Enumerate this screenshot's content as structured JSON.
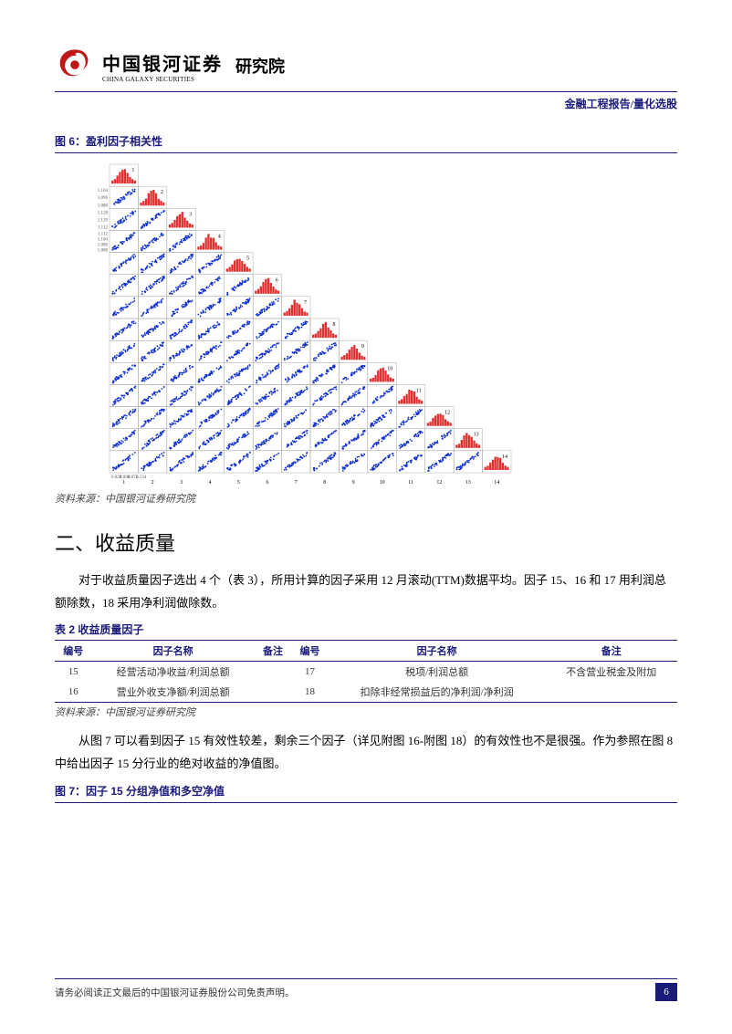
{
  "header": {
    "logo_cn": "中国银河证券",
    "logo_en": "CHINA GALAXY SECURITIES",
    "dept": "研究院",
    "doc_category": "金融工程报告/量化选股"
  },
  "figure6": {
    "title": "图 6：盈利因子相关性",
    "source": "资料来源：中国银河证券研究院",
    "matrix": {
      "type": "scatter-matrix-lower-triangular",
      "n_vars": 14,
      "diagonal_type": "histogram",
      "diag_color": "#e03030",
      "scatter_color": "#1030d0",
      "grid_color": "#999999",
      "background_color": "#ffffff",
      "cell_labels": [
        "1",
        "2",
        "3",
        "4",
        "5",
        "6",
        "7",
        "8",
        "9",
        "10",
        "11",
        "12",
        "13",
        "14"
      ],
      "tick_label_fontsize": 5,
      "panel_label_fontsize": 6,
      "axis_tick_sample": [
        0.028,
        0.098,
        0.072,
        0.134
      ],
      "y_tick_samples": [
        [
          1.104,
          1.096,
          1.088
        ],
        [
          1.128,
          1.12,
          1.112
        ],
        [
          1.112,
          1.104,
          1.096,
          1.088
        ]
      ],
      "scatter_correlation_note": "high positive correlation along diagonal bands; most off-diagonal panels show strong linear clusters",
      "points_per_cell_approx": 40,
      "hist_bins": 10
    }
  },
  "section2": {
    "title": "二、收益质量",
    "para1": "对于收益质量因子选出 4 个（表 3），所用计算的因子采用 12 月滚动(TTM)数据平均。因子 15、16 和 17 用利润总额除数，18 采用净利润做除数。",
    "para2": "从图 7 可以看到因子 15 有效性较差，剩余三个因子（详见附图 16-附图 18）的有效性也不是很强。作为参照在图 8 中给出因子 15 分行业的绝对收益的净值图。"
  },
  "table2": {
    "title": "表 2 收益质量因子",
    "source": "资料来源：中国银河证券研究院",
    "columns": [
      "编号",
      "因子名称",
      "备注",
      "编号",
      "因子名称",
      "备注"
    ],
    "col_aligns": [
      "center",
      "center",
      "center",
      "center",
      "center",
      "center"
    ],
    "rows": [
      [
        "15",
        "经营活动净收益/利润总额",
        "",
        "17",
        "税项/利润总额",
        "不含营业税金及附加"
      ],
      [
        "16",
        "营业外收支净额/利润总额",
        "",
        "18",
        "扣除非经常损益后的净利润/净利润",
        ""
      ]
    ]
  },
  "figure7": {
    "title": "图 7：因子 15 分组净值和多空净值"
  },
  "footer": {
    "disclaimer": "请务必阅读正文最后的中国银河证券股份公司免责声明。",
    "page": "6"
  },
  "colors": {
    "brand_navy": "#1a1a7a",
    "brand_red": "#c01818"
  }
}
